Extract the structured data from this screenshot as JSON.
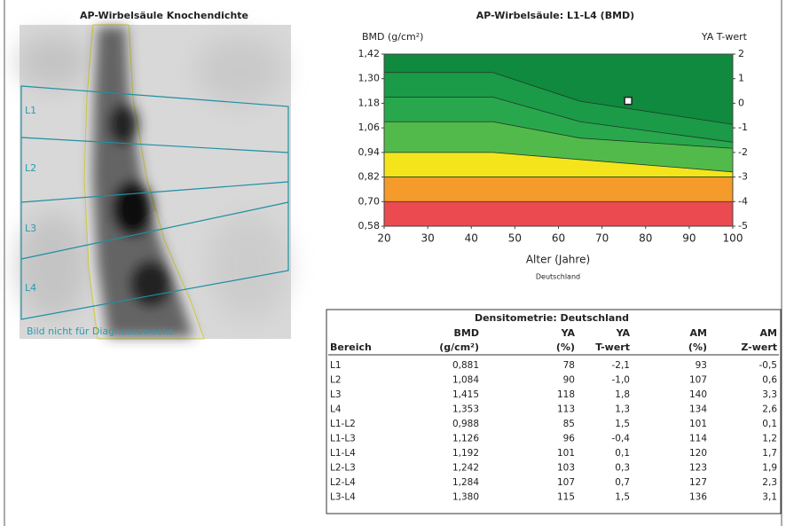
{
  "image": {
    "title": "AP-Wirbelsäule Knochendichte",
    "labels": [
      "L1",
      "L2",
      "L3",
      "L4"
    ],
    "caption": "Bild nicht für Diagnosezwecke"
  },
  "chart_data": {
    "type": "band",
    "title": "AP-Wirbelsäule: L1-L4 (BMD)",
    "y_label": "BMD (g/cm²)",
    "y2_label": "YA T-wert",
    "x_label": "Alter (Jahre)",
    "subtitle": "Deutschland",
    "xlim": [
      20,
      100
    ],
    "xticks": [
      20,
      30,
      40,
      50,
      60,
      70,
      80,
      90,
      100
    ],
    "ylim": [
      0.58,
      1.42
    ],
    "yticks": [
      {
        "value": 0.58,
        "label": "0,58"
      },
      {
        "value": 0.7,
        "label": "0,70"
      },
      {
        "value": 0.82,
        "label": "0,82"
      },
      {
        "value": 0.94,
        "label": "0,94"
      },
      {
        "value": 1.06,
        "label": "1,06"
      },
      {
        "value": 1.18,
        "label": "1,18"
      },
      {
        "value": 1.3,
        "label": "1,30"
      },
      {
        "value": 1.42,
        "label": "1,42"
      }
    ],
    "y2lim": [
      -5,
      2
    ],
    "y2ticks": [
      -5,
      -4,
      -3,
      -2,
      -1,
      0,
      1,
      2
    ],
    "bands": {
      "x": [
        20,
        45,
        65,
        100
      ],
      "curves": [
        {
          "color": "#108a3e",
          "values": [
            1.33,
            1.33,
            1.19,
            1.077
          ]
        },
        {
          "color": "#1b9a48",
          "values": [
            1.21,
            1.21,
            1.09,
            0.99
          ]
        },
        {
          "color": "#29a74d",
          "values": [
            1.09,
            1.09,
            1.01,
            0.96
          ]
        },
        {
          "color": "#52ba4a",
          "values": [
            0.94,
            0.94,
            0.905,
            0.845
          ]
        },
        {
          "color": "#f4e41c",
          "values": [
            0.82,
            0.82,
            0.82,
            0.82
          ]
        },
        {
          "color": "#f49b2c",
          "values": [
            0.7,
            0.7,
            0.7,
            0.7
          ]
        }
      ],
      "floor_color": "#ea4a50"
    },
    "point": {
      "x": 76,
      "y": 1.192
    }
  },
  "table": {
    "title": "Densitometrie: Deutschland",
    "header": [
      [
        "Bereich"
      ],
      [
        "BMD",
        "(g/cm²)"
      ],
      [
        "YA",
        "(%)"
      ],
      [
        "YA",
        "T-wert"
      ],
      [
        "AM",
        "(%)"
      ],
      [
        "AM",
        "Z-wert"
      ]
    ],
    "rows": [
      [
        "L1",
        "0,881",
        "78",
        "-2,1",
        "93",
        "-0,5"
      ],
      [
        "L2",
        "1,084",
        "90",
        "-1,0",
        "107",
        "0,6"
      ],
      [
        "L3",
        "1,415",
        "118",
        "1,8",
        "140",
        "3,3"
      ],
      [
        "L4",
        "1,353",
        "113",
        "1,3",
        "134",
        "2,6"
      ],
      [
        "L1-L2",
        "0,988",
        "85",
        "1,5",
        "101",
        "0,1"
      ],
      [
        "L1-L3",
        "1,126",
        "96",
        "-0,4",
        "114",
        "1,2"
      ],
      [
        "L1-L4",
        "1,192",
        "101",
        "0,1",
        "120",
        "1,7"
      ],
      [
        "L2-L3",
        "1,242",
        "103",
        "0,3",
        "123",
        "1,9"
      ],
      [
        "L2-L4",
        "1,284",
        "107",
        "0,7",
        "127",
        "2,3"
      ],
      [
        "L3-L4",
        "1,380",
        "115",
        "1,5",
        "136",
        "3,1"
      ]
    ]
  }
}
